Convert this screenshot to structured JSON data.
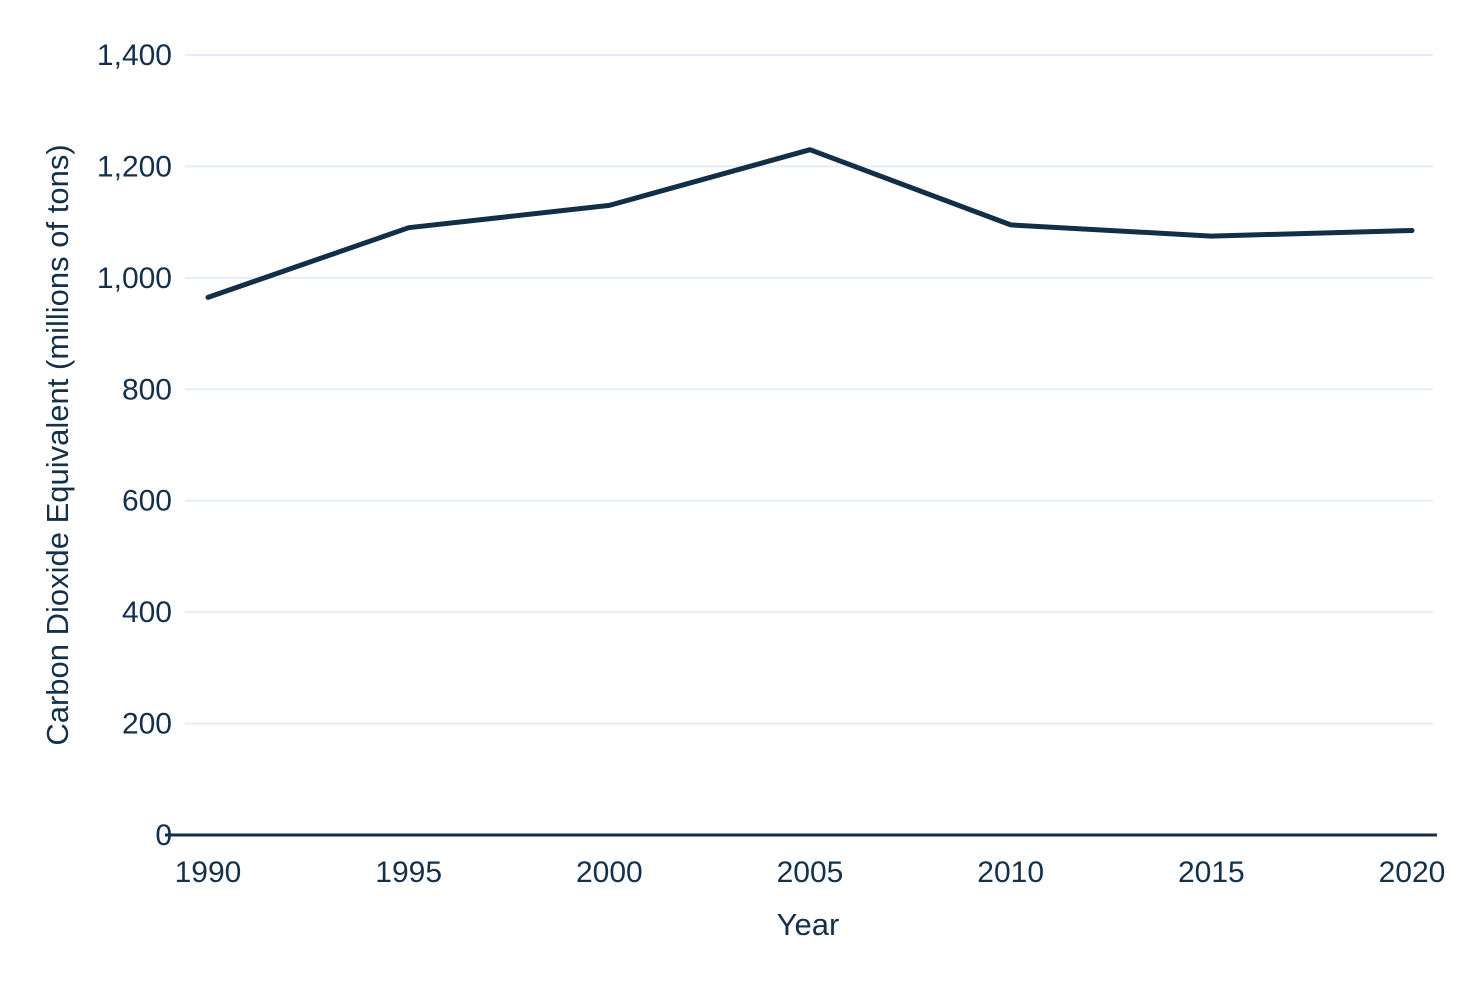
{
  "chart_data": {
    "type": "line",
    "title": "",
    "xlabel": "Year",
    "ylabel": "Carbon Dioxide Equivalent (millions of tons)",
    "x": [
      1990,
      1995,
      2000,
      2005,
      2010,
      2015,
      2020
    ],
    "values": [
      965,
      1090,
      1130,
      1230,
      1095,
      1075,
      1085
    ],
    "x_tick_labels": [
      "1990",
      "1995",
      "2000",
      "2005",
      "2010",
      "2015",
      "2020"
    ],
    "y_ticks": [
      0,
      200,
      400,
      600,
      800,
      1000,
      1200,
      1400
    ],
    "y_tick_labels": [
      "0",
      "200",
      "400",
      "600",
      "800",
      "1,000",
      "1,200",
      "1,400"
    ],
    "xlim": [
      1990,
      2020
    ],
    "ylim": [
      0,
      1400
    ],
    "grid": "horizontal-only",
    "legend": "none",
    "colors": {
      "line": "#132e47",
      "axis": "#132e47",
      "tick_text": "#14304a",
      "gridline": "#e3edf9",
      "background": "#ffffff"
    }
  }
}
